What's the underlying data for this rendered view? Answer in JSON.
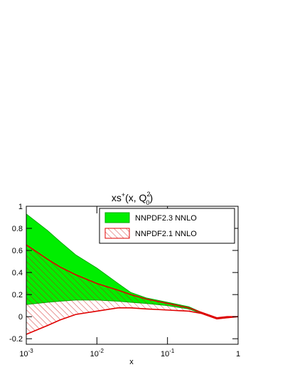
{
  "chart_data": {
    "type": "band",
    "title": [
      "xs",
      "+",
      "(x, Q",
      "2",
      "0",
      ")"
    ],
    "x_label": "x",
    "log_x": true,
    "x": [
      0.001,
      0.002,
      0.003,
      0.005,
      0.01,
      0.02,
      0.03,
      0.05,
      0.1,
      0.2,
      0.3,
      0.5,
      0.7,
      1
    ],
    "xlim": [
      0.001,
      1
    ],
    "xticks": [
      {
        "value": 0.001,
        "label": "10",
        "exponent": "-3"
      },
      {
        "value": 0.01,
        "label": "10",
        "exponent": "-2"
      },
      {
        "value": 0.1,
        "label": "10",
        "exponent": "-1"
      },
      1
    ],
    "ylim": [
      -0.25,
      1
    ],
    "yticks": [
      -0.2,
      0,
      0.2,
      0.4,
      0.6,
      0.8,
      1
    ],
    "legend": "top-right",
    "series": [
      {
        "name": "NNPDF2.3 NNLO",
        "color": "#00ee00",
        "style": "solid",
        "upper": [
          0.93,
          0.78,
          0.68,
          0.56,
          0.44,
          0.3,
          0.22,
          0.17,
          0.13,
          0.09,
          0.04,
          -0.01,
          0.0,
          0.0
        ],
        "lower": [
          0.11,
          0.13,
          0.14,
          0.15,
          0.15,
          0.14,
          0.13,
          0.12,
          0.1,
          0.07,
          0.03,
          -0.02,
          -0.01,
          0.0
        ]
      },
      {
        "name": "NNPDF2.1 NNLO",
        "color": "#e00000",
        "style": "hatch",
        "upper": [
          0.65,
          0.52,
          0.45,
          0.38,
          0.3,
          0.24,
          0.2,
          0.16,
          0.12,
          0.08,
          0.04,
          -0.01,
          0.0,
          0.0
        ],
        "lower": [
          -0.16,
          -0.08,
          -0.03,
          0.02,
          0.05,
          0.08,
          0.08,
          0.07,
          0.06,
          0.05,
          0.03,
          -0.02,
          -0.01,
          0.0
        ]
      }
    ]
  }
}
